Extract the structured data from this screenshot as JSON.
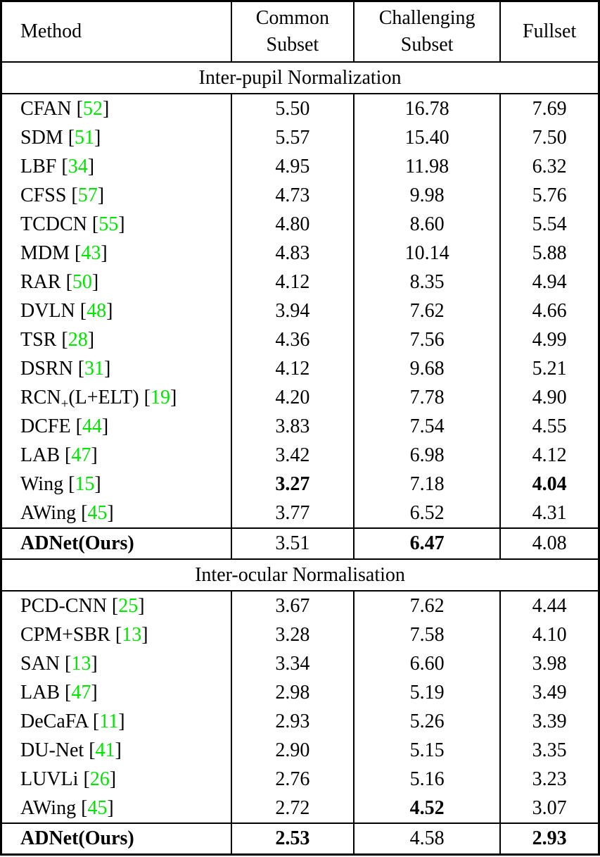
{
  "colors": {
    "citation_green": "#00e600",
    "text": "#000000",
    "background": "#ffffff"
  },
  "header": {
    "method": "Method",
    "columns": [
      "Common\nSubset",
      "Challenging\nSubset",
      "Fullset"
    ]
  },
  "column_names": [
    "common-subset",
    "challenging-subset",
    "fullset"
  ],
  "sections": [
    {
      "label": "Inter-pupil Normalization",
      "rows": [
        {
          "method": "CFAN",
          "cite": "52",
          "values": [
            "5.50",
            "16.78",
            "7.69"
          ],
          "bold_method": false,
          "bold_values": [
            false,
            false,
            false
          ]
        },
        {
          "method": "SDM",
          "cite": "51",
          "values": [
            "5.57",
            "15.40",
            "7.50"
          ],
          "bold_method": false,
          "bold_values": [
            false,
            false,
            false
          ]
        },
        {
          "method": "LBF",
          "cite": "34",
          "values": [
            "4.95",
            "11.98",
            "6.32"
          ],
          "bold_method": false,
          "bold_values": [
            false,
            false,
            false
          ]
        },
        {
          "method": "CFSS",
          "cite": "57",
          "values": [
            "4.73",
            "9.98",
            "5.76"
          ],
          "bold_method": false,
          "bold_values": [
            false,
            false,
            false
          ]
        },
        {
          "method": "TCDCN",
          "cite": "55",
          "values": [
            "4.80",
            "8.60",
            "5.54"
          ],
          "bold_method": false,
          "bold_values": [
            false,
            false,
            false
          ]
        },
        {
          "method": "MDM",
          "cite": "43",
          "values": [
            "4.83",
            "10.14",
            "5.88"
          ],
          "bold_method": false,
          "bold_values": [
            false,
            false,
            false
          ]
        },
        {
          "method": "RAR",
          "cite": "50",
          "values": [
            "4.12",
            "8.35",
            "4.94"
          ],
          "bold_method": false,
          "bold_values": [
            false,
            false,
            false
          ]
        },
        {
          "method": "DVLN",
          "cite": "48",
          "values": [
            "3.94",
            "7.62",
            "4.66"
          ],
          "bold_method": false,
          "bold_values": [
            false,
            false,
            false
          ]
        },
        {
          "method": "TSR",
          "cite": "28",
          "values": [
            "4.36",
            "7.56",
            "4.99"
          ],
          "bold_method": false,
          "bold_values": [
            false,
            false,
            false
          ]
        },
        {
          "method": "DSRN",
          "cite": "31",
          "values": [
            "4.12",
            "9.68",
            "5.21"
          ],
          "bold_method": false,
          "bold_values": [
            false,
            false,
            false
          ]
        },
        {
          "method": "RCN",
          "method_subscript": "+",
          "method_suffix": "(L+ELT)",
          "cite": "19",
          "values": [
            "4.20",
            "7.78",
            "4.90"
          ],
          "bold_method": false,
          "bold_values": [
            false,
            false,
            false
          ]
        },
        {
          "method": "DCFE",
          "cite": "44",
          "values": [
            "3.83",
            "7.54",
            "4.55"
          ],
          "bold_method": false,
          "bold_values": [
            false,
            false,
            false
          ]
        },
        {
          "method": "LAB",
          "cite": "47",
          "values": [
            "3.42",
            "6.98",
            "4.12"
          ],
          "bold_method": false,
          "bold_values": [
            false,
            false,
            false
          ]
        },
        {
          "method": "Wing",
          "cite": "15",
          "values": [
            "3.27",
            "7.18",
            "4.04"
          ],
          "bold_method": false,
          "bold_values": [
            true,
            false,
            true
          ]
        },
        {
          "method": "AWing",
          "cite": "45",
          "values": [
            "3.77",
            "6.52",
            "4.31"
          ],
          "bold_method": false,
          "bold_values": [
            false,
            false,
            false
          ]
        }
      ],
      "summary": {
        "method": "ADNet(Ours)",
        "values": [
          "3.51",
          "6.47",
          "4.08"
        ],
        "bold_method": true,
        "bold_values": [
          false,
          true,
          false
        ]
      }
    },
    {
      "label": "Inter-ocular Normalisation",
      "rows": [
        {
          "method": "PCD-CNN",
          "cite": "25",
          "values": [
            "3.67",
            "7.62",
            "4.44"
          ],
          "bold_method": false,
          "bold_values": [
            false,
            false,
            false
          ]
        },
        {
          "method": "CPM+SBR",
          "cite": "13",
          "values": [
            "3.28",
            "7.58",
            "4.10"
          ],
          "bold_method": false,
          "bold_values": [
            false,
            false,
            false
          ]
        },
        {
          "method": "SAN",
          "cite": "13",
          "values": [
            "3.34",
            "6.60",
            "3.98"
          ],
          "bold_method": false,
          "bold_values": [
            false,
            false,
            false
          ]
        },
        {
          "method": "LAB",
          "cite": "47",
          "values": [
            "2.98",
            "5.19",
            "3.49"
          ],
          "bold_method": false,
          "bold_values": [
            false,
            false,
            false
          ]
        },
        {
          "method": "DeCaFA",
          "cite": "11",
          "values": [
            "2.93",
            "5.26",
            "3.39"
          ],
          "bold_method": false,
          "bold_values": [
            false,
            false,
            false
          ]
        },
        {
          "method": "DU-Net",
          "cite": "41",
          "values": [
            "2.90",
            "5.15",
            "3.35"
          ],
          "bold_method": false,
          "bold_values": [
            false,
            false,
            false
          ]
        },
        {
          "method": "LUVLi",
          "cite": "26",
          "values": [
            "2.76",
            "5.16",
            "3.23"
          ],
          "bold_method": false,
          "bold_values": [
            false,
            false,
            false
          ]
        },
        {
          "method": "AWing",
          "cite": "45",
          "values": [
            "2.72",
            "4.52",
            "3.07"
          ],
          "bold_method": false,
          "bold_values": [
            false,
            true,
            false
          ]
        }
      ],
      "summary": {
        "method": "ADNet(Ours)",
        "values": [
          "2.53",
          "4.58",
          "2.93"
        ],
        "bold_method": true,
        "bold_values": [
          true,
          false,
          true
        ]
      }
    }
  ]
}
